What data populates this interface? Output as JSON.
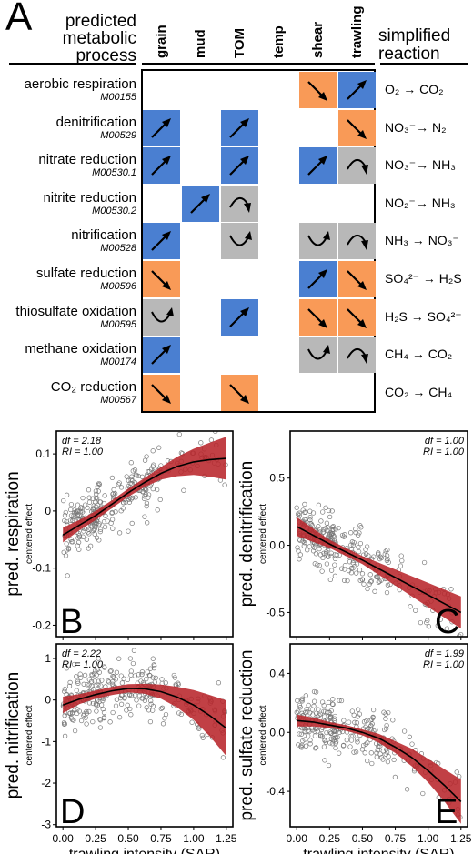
{
  "panelA": {
    "letter": "A",
    "header_left": [
      "predicted",
      "metabolic",
      "process"
    ],
    "header_right": [
      "simplified",
      "reaction"
    ],
    "columns": [
      "grain",
      "mud",
      "TOM",
      "temp",
      "shear",
      "trawling"
    ],
    "colors": {
      "blue": "#4a7fd1",
      "orange": "#f99a57",
      "gray": "#b8b8b8"
    },
    "rows": [
      {
        "name": "aerobic respiration",
        "code": "M00155",
        "reaction": "O₂ → CO₂",
        "cells": [
          null,
          null,
          null,
          null,
          {
            "c": "orange",
            "a": "down"
          },
          {
            "c": "blue",
            "a": "up"
          }
        ]
      },
      {
        "name": "denitrification",
        "code": "M00529",
        "reaction": "NO₃⁻→ N₂",
        "cells": [
          {
            "c": "blue",
            "a": "up"
          },
          null,
          {
            "c": "blue",
            "a": "up"
          },
          null,
          null,
          {
            "c": "orange",
            "a": "down"
          }
        ]
      },
      {
        "name": "nitrate reduction",
        "code": "M00530.1",
        "reaction": "NO₃⁻→ NH₃",
        "cells": [
          {
            "c": "blue",
            "a": "up"
          },
          null,
          {
            "c": "blue",
            "a": "up"
          },
          null,
          {
            "c": "blue",
            "a": "up"
          },
          {
            "c": "gray",
            "a": "hump"
          }
        ]
      },
      {
        "name": "nitrite reduction",
        "code": "M00530.2",
        "reaction": "NO₂⁻→ NH₃",
        "cells": [
          null,
          {
            "c": "blue",
            "a": "up"
          },
          {
            "c": "gray",
            "a": "hump"
          },
          null,
          null,
          null
        ]
      },
      {
        "name": "nitrification",
        "code": "M00528",
        "reaction": "NH₃ → NO₃⁻",
        "cells": [
          {
            "c": "blue",
            "a": "up"
          },
          null,
          {
            "c": "gray",
            "a": "u"
          },
          null,
          {
            "c": "gray",
            "a": "u"
          },
          {
            "c": "gray",
            "a": "hump"
          }
        ]
      },
      {
        "name": "sulfate reduction",
        "code": "M00596",
        "reaction": "SO₄²⁻ → H₂S",
        "cells": [
          {
            "c": "orange",
            "a": "down"
          },
          null,
          null,
          null,
          {
            "c": "blue",
            "a": "up"
          },
          {
            "c": "orange",
            "a": "down"
          }
        ]
      },
      {
        "name": "thiosulfate oxidation",
        "code": "M00595",
        "reaction": "H₂S → SO₄²⁻",
        "cells": [
          {
            "c": "gray",
            "a": "u"
          },
          null,
          {
            "c": "blue",
            "a": "up"
          },
          null,
          {
            "c": "orange",
            "a": "down"
          },
          {
            "c": "orange",
            "a": "down"
          }
        ]
      },
      {
        "name": "methane oxidation",
        "code": "M00174",
        "reaction": "CH₄ → CO₂",
        "cells": [
          {
            "c": "blue",
            "a": "up"
          },
          null,
          null,
          null,
          {
            "c": "gray",
            "a": "u"
          },
          {
            "c": "gray",
            "a": "hump"
          }
        ]
      },
      {
        "name": "CO₂ reduction",
        "code": "M00567",
        "reaction": "CO₂ → CH₄",
        "cells": [
          {
            "c": "orange",
            "a": "down"
          },
          null,
          {
            "c": "orange",
            "a": "down"
          },
          null,
          null,
          null
        ]
      }
    ]
  },
  "chart_data": [
    {
      "type": "scatter",
      "panel": "B",
      "ylabel": "pred. respiration",
      "ysub": "centered effect",
      "stats": [
        "df = 2.18",
        "RI = 1.00"
      ],
      "xlim": [
        -0.05,
        1.3
      ],
      "ylim": [
        -0.22,
        0.14
      ],
      "yticks": [
        {
          "v": -0.2,
          "l": "-0.2"
        },
        {
          "v": -0.1,
          "l": "-0.1"
        },
        {
          "v": 0,
          "l": "0"
        },
        {
          "v": 0.1,
          "l": "0.1"
        }
      ],
      "xticks": [],
      "show_x_labels": false,
      "fit": {
        "x": [
          0,
          0.125,
          0.25,
          0.375,
          0.5,
          0.625,
          0.75,
          0.875,
          1.0,
          1.125,
          1.25
        ],
        "y": [
          -0.042,
          -0.025,
          -0.008,
          0.012,
          0.032,
          0.05,
          0.066,
          0.078,
          0.086,
          0.09,
          0.092
        ],
        "lo": [
          -0.055,
          -0.034,
          -0.016,
          0.005,
          0.025,
          0.042,
          0.055,
          0.061,
          0.063,
          0.06,
          0.055
        ],
        "hi": [
          -0.029,
          -0.016,
          0.0,
          0.019,
          0.039,
          0.058,
          0.077,
          0.095,
          0.109,
          0.12,
          0.13
        ]
      },
      "scatter": {
        "count": 300,
        "noise": 0.035,
        "seed": 11
      }
    },
    {
      "type": "scatter",
      "panel": "C",
      "ylabel": "pred. denitrification",
      "ysub": "centered effect",
      "stats": [
        "df = 1.00",
        "RI = 1.00"
      ],
      "xlim": [
        -0.05,
        1.3
      ],
      "ylim": [
        -0.68,
        0.85
      ],
      "yticks": [
        {
          "v": -0.5,
          "l": "-0.5"
        },
        {
          "v": 0,
          "l": "0.0"
        },
        {
          "v": 0.5,
          "l": "0.5"
        }
      ],
      "xticks": [],
      "show_x_labels": false,
      "fit": {
        "x": [
          0,
          0.25,
          0.5,
          0.75,
          1.0,
          1.25
        ],
        "y": [
          0.14,
          0.01,
          -0.11,
          -0.24,
          -0.37,
          -0.5
        ],
        "lo": [
          0.07,
          -0.02,
          -0.14,
          -0.3,
          -0.46,
          -0.62
        ],
        "hi": [
          0.21,
          0.04,
          -0.08,
          -0.18,
          -0.28,
          -0.38
        ]
      },
      "scatter": {
        "count": 300,
        "noise": 0.16,
        "seed": 23
      }
    },
    {
      "type": "scatter",
      "panel": "D",
      "ylabel": "pred. nitrification",
      "ysub": "centered effect",
      "stats": [
        "df = 2.22",
        "RI = 1.00"
      ],
      "xlim": [
        -0.05,
        1.3
      ],
      "ylim": [
        -3.05,
        1.35
      ],
      "yticks": [
        {
          "v": -3,
          "l": "-3"
        },
        {
          "v": -2,
          "l": "-2"
        },
        {
          "v": -1,
          "l": "-1"
        },
        {
          "v": 0,
          "l": "0"
        },
        {
          "v": 1,
          "l": "1"
        }
      ],
      "xticks": [
        {
          "v": 0,
          "l": "0.00"
        },
        {
          "v": 0.25,
          "l": "0.25"
        },
        {
          "v": 0.5,
          "l": "0.50"
        },
        {
          "v": 0.75,
          "l": "0.75"
        },
        {
          "v": 1.0,
          "l": "1.00"
        },
        {
          "v": 1.25,
          "l": "1.25"
        }
      ],
      "show_x_labels": true,
      "xlabel": "trawling intensity (SAR)",
      "fit": {
        "x": [
          0,
          0.125,
          0.25,
          0.375,
          0.5,
          0.625,
          0.75,
          0.875,
          1.0,
          1.125,
          1.25
        ],
        "y": [
          -0.12,
          0.02,
          0.13,
          0.22,
          0.28,
          0.27,
          0.2,
          0.07,
          -0.12,
          -0.38,
          -0.68
        ],
        "lo": [
          -0.32,
          -0.1,
          0.03,
          0.12,
          0.18,
          0.15,
          0.03,
          -0.18,
          -0.48,
          -0.88,
          -1.35
        ],
        "hi": [
          0.08,
          0.14,
          0.23,
          0.32,
          0.38,
          0.39,
          0.37,
          0.32,
          0.24,
          0.12,
          -0.01
        ]
      },
      "scatter": {
        "count": 300,
        "noise": 0.55,
        "seed": 37
      }
    },
    {
      "type": "scatter",
      "panel": "E",
      "ylabel": "pred. sulfate reduction",
      "ysub": "centered effect",
      "stats": [
        "df = 1.99",
        "RI = 1.00"
      ],
      "xlim": [
        -0.05,
        1.3
      ],
      "ylim": [
        -0.64,
        0.6
      ],
      "yticks": [
        {
          "v": -0.4,
          "l": "-0.4"
        },
        {
          "v": 0,
          "l": "0.0"
        },
        {
          "v": 0.4,
          "l": "0.4"
        }
      ],
      "xticks": [
        {
          "v": 0,
          "l": "0.00"
        },
        {
          "v": 0.25,
          "l": "0.25"
        },
        {
          "v": 0.5,
          "l": "0.50"
        },
        {
          "v": 0.75,
          "l": "0.75"
        },
        {
          "v": 1.0,
          "l": "1.00"
        },
        {
          "v": 1.25,
          "l": "1.25"
        }
      ],
      "show_x_labels": true,
      "xlabel": "trawling intensity (SAR)",
      "fit": {
        "x": [
          0,
          0.125,
          0.25,
          0.375,
          0.5,
          0.625,
          0.75,
          0.875,
          1.0,
          1.125,
          1.25
        ],
        "y": [
          0.08,
          0.07,
          0.05,
          0.03,
          0.0,
          -0.04,
          -0.1,
          -0.17,
          -0.26,
          -0.36,
          -0.47
        ],
        "lo": [
          0.04,
          0.04,
          0.03,
          0.01,
          -0.02,
          -0.07,
          -0.14,
          -0.23,
          -0.34,
          -0.47,
          -0.62
        ],
        "hi": [
          0.12,
          0.1,
          0.07,
          0.05,
          0.02,
          -0.01,
          -0.06,
          -0.11,
          -0.18,
          -0.25,
          -0.32
        ]
      },
      "scatter": {
        "count": 280,
        "noise": 0.13,
        "seed": 51
      }
    }
  ]
}
